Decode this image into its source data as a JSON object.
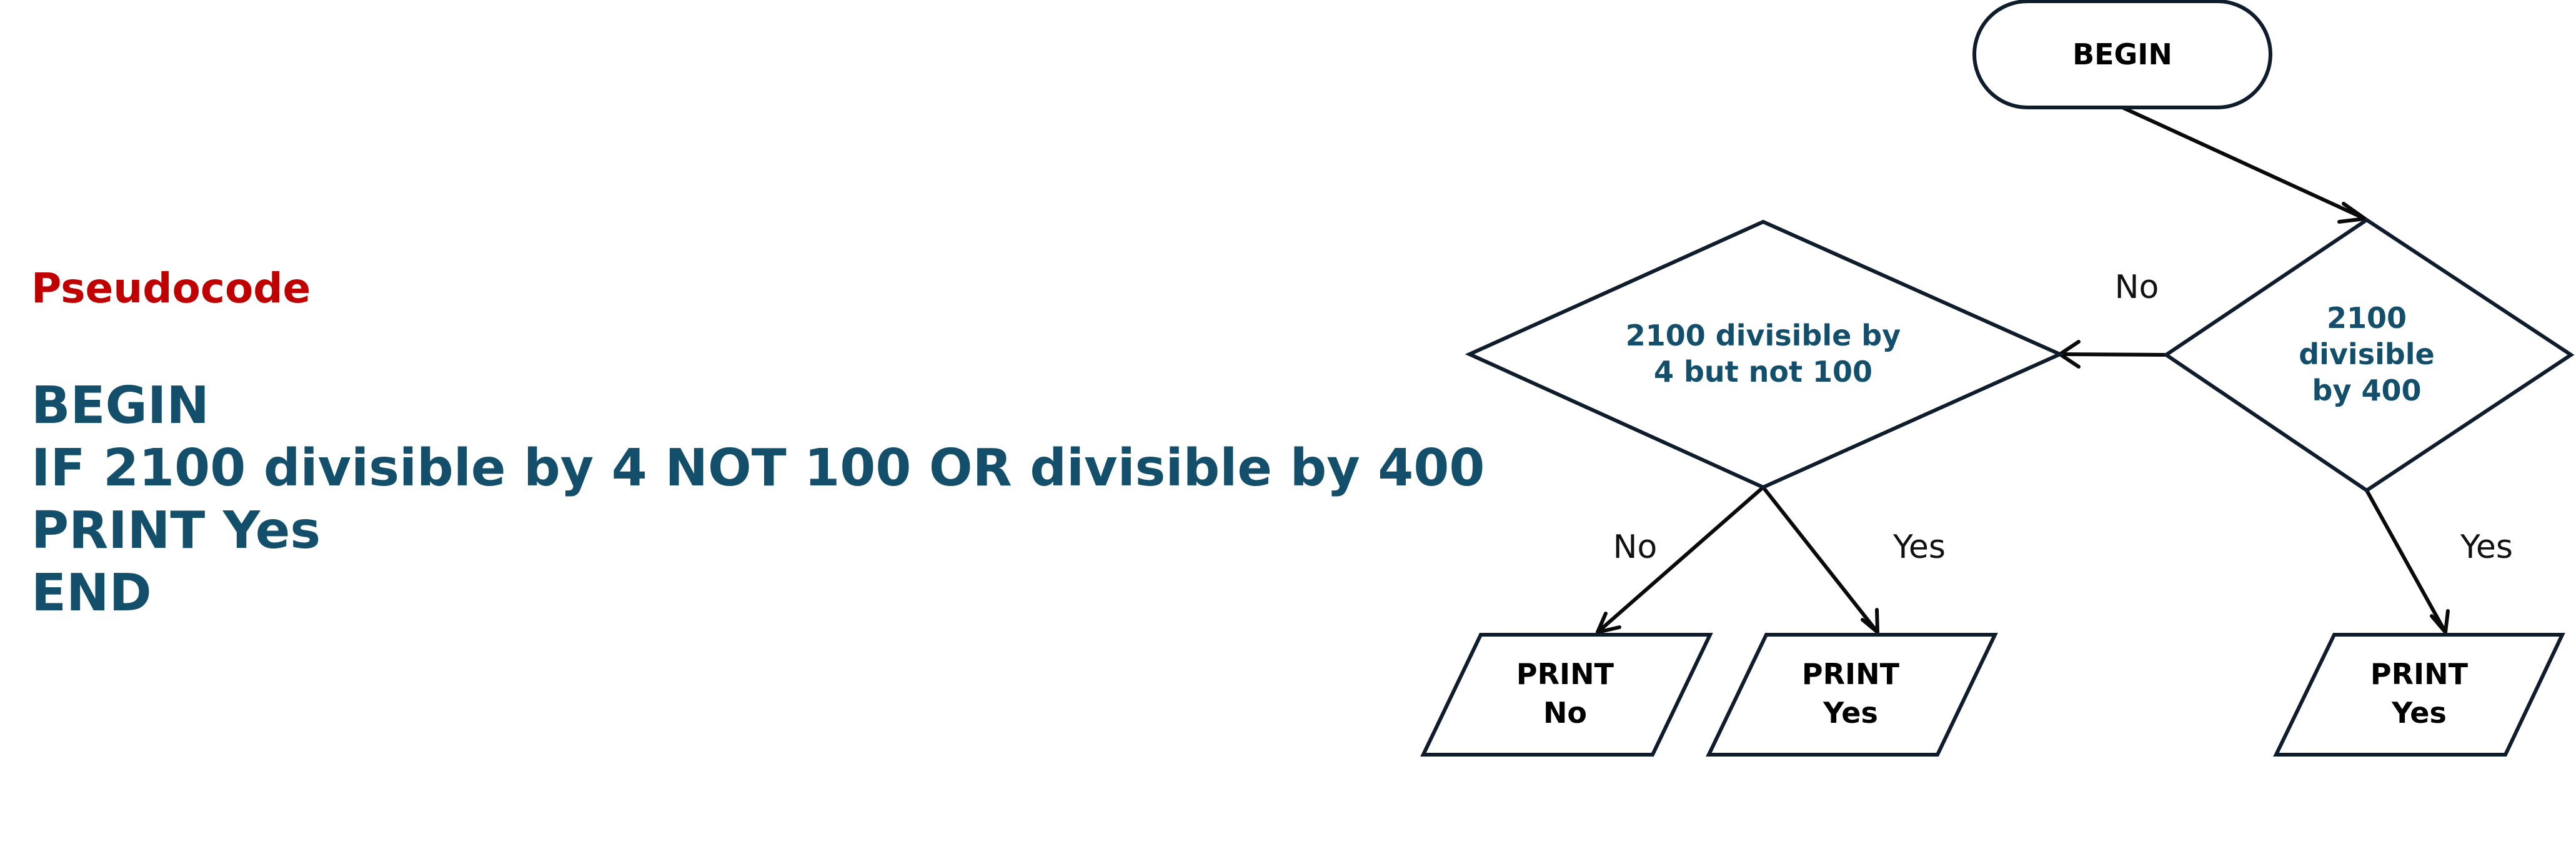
{
  "pseudocode": {
    "heading": "Pseudocode",
    "lines": [
      "BEGIN",
      "IF 2100 divisible by 4 NOT 100 OR divisible by 400",
      "PRINT Yes",
      "END"
    ]
  },
  "flowchart": {
    "begin": "BEGIN",
    "decision_400": [
      "2100",
      "divisible",
      "by 400"
    ],
    "decision_4_not_100": [
      "2100 divisible by",
      "4 but not 100"
    ],
    "print_no": [
      "PRINT",
      "No"
    ],
    "print_yes_middle": [
      "PRINT",
      "Yes"
    ],
    "print_yes_right": [
      "PRINT",
      "Yes"
    ],
    "edge_labels": {
      "from_400_no": "No",
      "from_400_yes": "Yes",
      "from_4_no": "No",
      "from_4_yes": "Yes"
    }
  },
  "colors": {
    "heading": "#c00000",
    "code": "#134f6b",
    "decision_text": "#134f6b"
  }
}
